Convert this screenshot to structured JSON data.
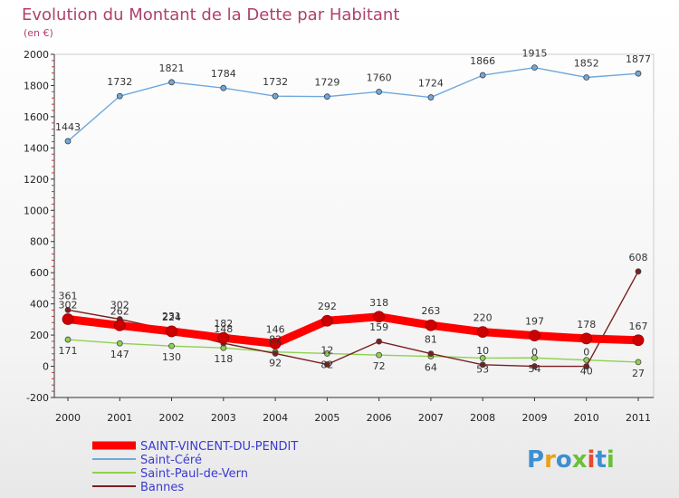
{
  "chart_data": {
    "type": "line",
    "title": "Evolution du Montant de la Dette par Habitant",
    "subtitle": "(en €)",
    "xlabel": "",
    "ylabel": "",
    "ylim": [
      -200,
      2000
    ],
    "yticks": [
      -200,
      0,
      200,
      400,
      600,
      800,
      1000,
      1200,
      1400,
      1600,
      1800,
      2000
    ],
    "x": [
      2000,
      2001,
      2002,
      2003,
      2004,
      2005,
      2006,
      2007,
      2008,
      2009,
      2010,
      2011
    ],
    "grid": false,
    "legend_position": "bottom-left",
    "series": [
      {
        "name": "SAINT-VINCENT-DU-PENDIT",
        "color": "#ff0000",
        "labels_shown": true,
        "values": [
          302,
          262,
          224,
          182,
          146,
          292,
          318,
          263,
          220,
          197,
          178,
          167
        ]
      },
      {
        "name": "Saint-Céré",
        "color": "#6fa8dc",
        "labels_shown": true,
        "values": [
          1443,
          1732,
          1821,
          1784,
          1732,
          1729,
          1760,
          1724,
          1866,
          1915,
          1852,
          1877
        ]
      },
      {
        "name": "Saint-Paul-de-Vern",
        "color": "#8fd14f",
        "labels_shown": true,
        "values": [
          171,
          147,
          130,
          118,
          92,
          82,
          72,
          64,
          53,
          54,
          40,
          27
        ]
      },
      {
        "name": "Bannes",
        "color": "#7a1f1f",
        "labels_shown": true,
        "values": [
          361,
          302,
          231,
          148,
          82,
          12,
          159,
          81,
          10,
          0,
          0,
          608
        ]
      }
    ]
  },
  "logo": {
    "text": "Proxiti"
  }
}
